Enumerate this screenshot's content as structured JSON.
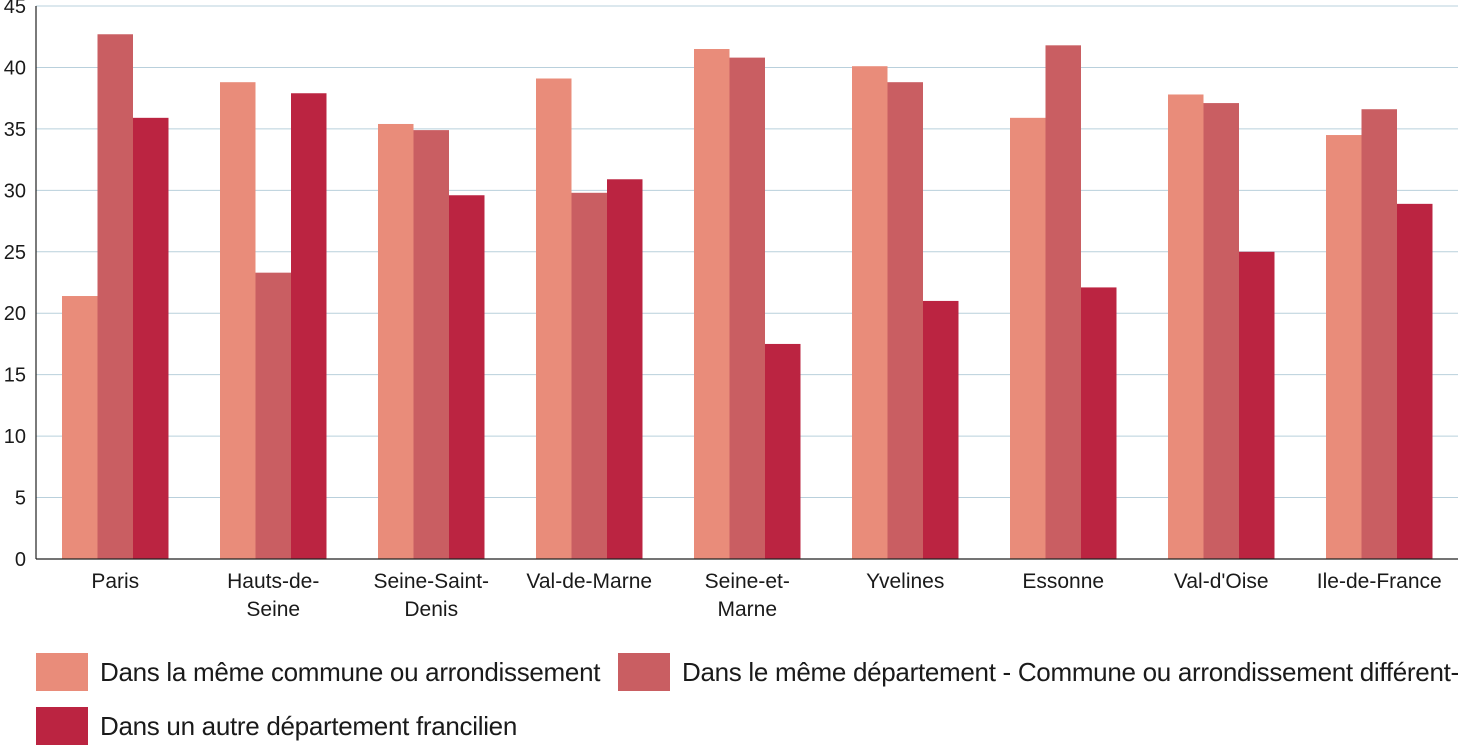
{
  "chart_data": {
    "type": "bar",
    "title": "",
    "xlabel": "",
    "ylabel": "",
    "ylim": [
      0,
      45
    ],
    "yticks": [
      0,
      5,
      10,
      15,
      20,
      25,
      30,
      35,
      40,
      45
    ],
    "grid": true,
    "legend_position": "bottom",
    "categories": [
      [
        "Paris"
      ],
      [
        "Hauts-de-",
        "Seine"
      ],
      [
        "Seine-Saint-",
        "Denis"
      ],
      [
        "Val-de-Marne"
      ],
      [
        "Seine-et-",
        "Marne"
      ],
      [
        "Yvelines"
      ],
      [
        "Essonne"
      ],
      [
        "Val-d'Oise"
      ],
      [
        "Ile-de-France"
      ]
    ],
    "series": [
      {
        "name": "Dans la même commune ou arrondissement",
        "color": "#e98c7a",
        "values": [
          21.4,
          38.8,
          35.4,
          39.1,
          41.5,
          40.1,
          35.9,
          37.8,
          34.5
        ]
      },
      {
        "name": "Dans le même département - Commune ou arrondissement différent-e",
        "color": "#c95e62",
        "values": [
          42.7,
          23.3,
          34.9,
          29.8,
          40.8,
          38.8,
          41.8,
          37.1,
          36.6
        ]
      },
      {
        "name": "Dans un autre département francilien",
        "color": "#bb2441",
        "values": [
          35.9,
          37.9,
          29.6,
          30.9,
          17.5,
          21.0,
          22.1,
          25.0,
          28.9
        ]
      }
    ]
  }
}
